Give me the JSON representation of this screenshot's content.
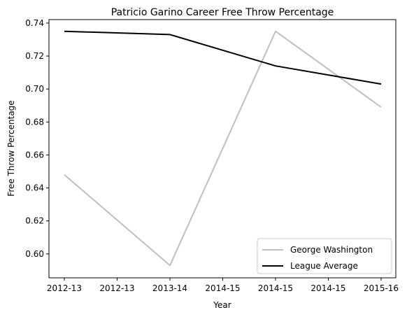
{
  "chart_data": {
    "type": "line",
    "title": "Patricio Garino Career Free Throw Percentage",
    "xlabel": "Year",
    "ylabel": "Free Throw Percentage",
    "x_tick_labels": [
      "2012-13",
      "2012-13",
      "2013-14",
      "2014-15",
      "2014-15",
      "2014-15",
      "2015-16"
    ],
    "categories": [
      "2012-13",
      "2013-14",
      "2014-15",
      "2015-16"
    ],
    "ylim": [
      0.5855,
      0.7421
    ],
    "y_ticks": [
      0.6,
      0.62,
      0.64,
      0.66,
      0.68,
      0.7,
      0.72,
      0.74
    ],
    "grid": false,
    "legend_position": "lower-right",
    "series": [
      {
        "name": "George Washington",
        "values": [
          0.648,
          0.593,
          0.735,
          0.689
        ],
        "color": "#bfbfbf"
      },
      {
        "name": "League Average",
        "values": [
          0.735,
          0.733,
          0.714,
          0.703
        ],
        "color": "#000000"
      }
    ]
  }
}
